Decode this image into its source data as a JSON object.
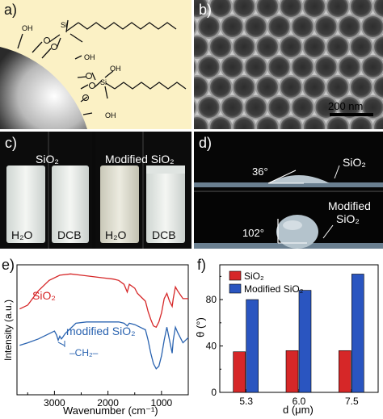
{
  "figure": {
    "panel_a": {
      "label": "a)",
      "atom_si_1": "Si",
      "atom_si_2": "Si",
      "group_oh_1": "OH",
      "group_oh_2": "OH",
      "group_oh_3": "OH",
      "group_oh_4": "OH",
      "bg_color": "#fbf1c5"
    },
    "panel_b": {
      "label": "b)",
      "scalebar": "200 nm"
    },
    "panel_c": {
      "label": "c)",
      "title_left": "SiO₂",
      "title_right": "Modified SiO₂",
      "vial_1": "H₂O",
      "vial_2": "DCB",
      "vial_3": "H₂O",
      "vial_4": "DCB"
    },
    "panel_d": {
      "label": "d)",
      "top_angle": "36°",
      "top_sample": "SiO₂",
      "bottom_angle": "102°",
      "bottom_sample_line1": "Modified",
      "bottom_sample_line2": "SiO₂"
    },
    "panel_e": {
      "label": "e)",
      "curve_label_top": "SiO₂",
      "curve_label_bottom": "modified SiO₂",
      "annotation": "–CH₂–",
      "xlabel": "Wavenumber (cm⁻¹)",
      "ylabel": "Intensity (a.u.)",
      "xticks": [
        "3000",
        "2000",
        "1000"
      ],
      "color_top": "#d62728",
      "color_bottom": "#2a63b0"
    },
    "panel_f": {
      "label": "f)",
      "ylabel": "θ (°)",
      "xlabel": "d (μm)",
      "legend": [
        "SiO₂",
        "Modified SiO₂"
      ],
      "colors": [
        "#d62728",
        "#2a55c0"
      ]
    }
  },
  "chart_data": [
    {
      "panel": "e",
      "type": "line",
      "x_axis": "Wavenumber (cm⁻¹)",
      "y_axis": "Intensity (a.u.)",
      "xlim": [
        3700,
        500
      ],
      "x_reversed": true,
      "y_ticks_shown": false,
      "series": [
        {
          "name": "SiO₂",
          "x": [
            3650,
            3500,
            3300,
            3100,
            2900,
            2700,
            2500,
            2300,
            2100,
            1900,
            1800,
            1700,
            1640,
            1600,
            1500,
            1450,
            1400,
            1300,
            1250,
            1200,
            1150,
            1100,
            1050,
            1000,
            950,
            900,
            850,
            800,
            780,
            740,
            700,
            600,
            500
          ],
          "y": [
            0.66,
            0.69,
            0.8,
            0.88,
            0.92,
            0.93,
            0.92,
            0.91,
            0.9,
            0.89,
            0.88,
            0.85,
            0.79,
            0.85,
            0.82,
            0.78,
            0.76,
            0.72,
            0.64,
            0.58,
            0.53,
            0.52,
            0.56,
            0.63,
            0.74,
            0.78,
            0.72,
            0.68,
            0.74,
            0.83,
            0.8,
            0.74,
            0.74
          ]
        },
        {
          "name": "modified SiO₂",
          "x": [
            3650,
            3500,
            3300,
            3100,
            3000,
            2960,
            2930,
            2900,
            2870,
            2850,
            2800,
            2600,
            2400,
            2200,
            2000,
            1900,
            1800,
            1700,
            1640,
            1600,
            1500,
            1450,
            1400,
            1300,
            1250,
            1200,
            1150,
            1100,
            1050,
            1000,
            950,
            900,
            850,
            800,
            780,
            740,
            700,
            600,
            500
          ],
          "y": [
            0.38,
            0.4,
            0.43,
            0.47,
            0.49,
            0.46,
            0.42,
            0.45,
            0.43,
            0.44,
            0.47,
            0.55,
            0.56,
            0.56,
            0.56,
            0.56,
            0.56,
            0.55,
            0.53,
            0.55,
            0.54,
            0.53,
            0.52,
            0.5,
            0.42,
            0.32,
            0.24,
            0.2,
            0.22,
            0.3,
            0.42,
            0.52,
            0.42,
            0.32,
            0.42,
            0.52,
            0.48,
            0.4,
            0.44
          ]
        }
      ]
    },
    {
      "panel": "f",
      "type": "bar",
      "categories": [
        "5.3",
        "6.0",
        "7.5"
      ],
      "ylim": [
        0,
        110
      ],
      "yticks": [
        0,
        40,
        80
      ],
      "xlabel": "d (μm)",
      "ylabel": "θ (°)",
      "legend_placement": "top-left",
      "series": [
        {
          "name": "SiO₂",
          "values": [
            35,
            36,
            36
          ]
        },
        {
          "name": "Modified SiO₂",
          "values": [
            80,
            88,
            102
          ]
        }
      ]
    }
  ]
}
